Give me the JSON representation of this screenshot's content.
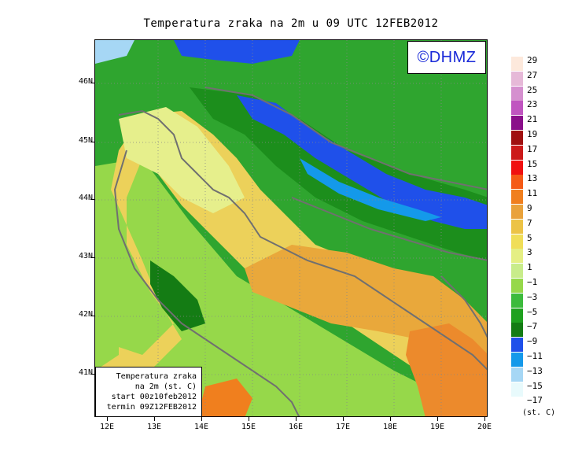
{
  "title": "Temperatura zraka na 2m u 09 UTC 12FEB2012",
  "logo": "©DHMZ",
  "info": {
    "line1": "Temperatura zraka",
    "line2": "na 2m (st. C)",
    "line3": "start 00z10feb2012",
    "line4": "termin 09Z12FEB2012"
  },
  "lat_labels": [
    "46N",
    "45N",
    "44N",
    "43N",
    "42N",
    "41N"
  ],
  "lon_labels": [
    "12E",
    "13E",
    "14E",
    "15E",
    "16E",
    "17E",
    "18E",
    "19E",
    "20E"
  ],
  "legend": {
    "labels": [
      "29",
      "27",
      "25",
      "23",
      "21",
      "19",
      "17",
      "15",
      "13",
      "11",
      "9",
      "7",
      "5",
      "3",
      "1",
      "−1",
      "−3",
      "−5",
      "−7",
      "−9",
      "−11",
      "−13",
      "−15",
      "−17"
    ],
    "colors": [
      "#fde9dc",
      "#e6b9d8",
      "#d590cf",
      "#c055c0",
      "#8a0f8a",
      "#a01010",
      "#cc1a1a",
      "#f01010",
      "#f55a16",
      "#f07f1e",
      "#e9a23b",
      "#ecc346",
      "#f0de58",
      "#e5ef84",
      "#c8ec8a",
      "#96d84a",
      "#3cbb3c",
      "#1fa11f",
      "#147c14",
      "#1f50ea",
      "#1499ea",
      "#a6d7f5",
      "#e8fafc",
      "#ffffff"
    ],
    "unit": "(st. C)"
  },
  "fields": {
    "sea_warm": "#e9b23b",
    "coast_yellow": "#f0de58",
    "cold_blue": "#1f50ea",
    "land_green": "#3cb43c",
    "border_gray": "#707070"
  }
}
